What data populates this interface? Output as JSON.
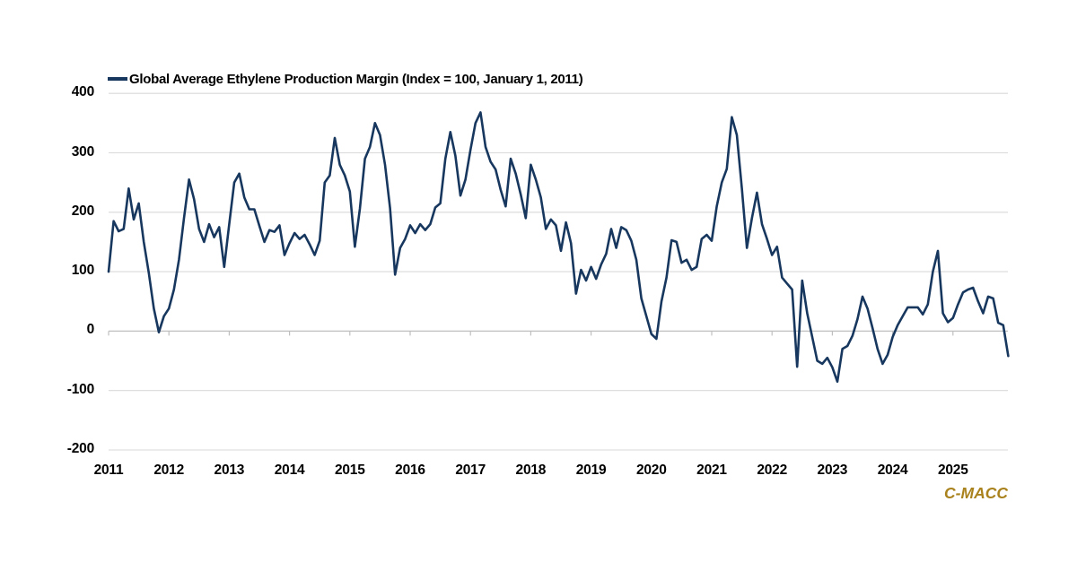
{
  "legend": {
    "label": "Global Average Ethylene Production Margin (Index = 100, January 1, 2011)"
  },
  "watermark": {
    "text": "C-MACC",
    "color": "#A9821D"
  },
  "chart_data": {
    "type": "line",
    "title": "",
    "legend_position": "top-left",
    "grid": "horizontal",
    "gridline_color": "#D9D9D9",
    "axis_line_color": "#BFBFBF",
    "label_color": "#000000",
    "background_color": "#FFFFFF",
    "x_tick_labels": [
      "2011",
      "2012",
      "2013",
      "2014",
      "2015",
      "2016",
      "2017",
      "2018",
      "2019",
      "2020",
      "2021",
      "2022",
      "2023",
      "2024",
      "2025"
    ],
    "y_ticks": [
      400,
      300,
      200,
      100,
      0,
      -100,
      -200
    ],
    "ylim": [
      -200,
      400
    ],
    "x_range_years": [
      2011,
      2026
    ],
    "series": [
      {
        "name": "Global Average Ethylene Production Margin (Index = 100, January 1, 2011)",
        "color": "#17375E",
        "start_year": 2011,
        "points_per_year": 12,
        "values_by_year": [
          {
            "year": "2011",
            "values": [
              100,
              185,
              168,
              172,
              240,
              188,
              215,
              150,
              98,
              38,
              -2,
              25
            ]
          },
          {
            "year": "2012",
            "values": [
              38,
              70,
              120,
              190,
              255,
              222,
              172,
              150,
              180,
              158,
              175,
              108
            ]
          },
          {
            "year": "2013",
            "values": [
              180,
              250,
              265,
              225,
              205,
              205,
              177,
              150,
              170,
              167,
              178,
              128
            ]
          },
          {
            "year": "2014",
            "values": [
              148,
              165,
              155,
              162,
              146,
              128,
              152,
              250,
              262,
              325,
              280,
              262
            ]
          },
          {
            "year": "2015",
            "values": [
              235,
              142,
              206,
              290,
              310,
              350,
              330,
              280,
              207,
              95,
              140,
              155
            ]
          },
          {
            "year": "2016",
            "values": [
              178,
              165,
              180,
              170,
              180,
              208,
              215,
              290,
              335,
              295,
              228,
              255
            ]
          },
          {
            "year": "2017",
            "values": [
              305,
              350,
              368,
              310,
              285,
              272,
              238,
              210,
              290,
              265,
              230,
              190
            ]
          },
          {
            "year": "2018",
            "values": [
              280,
              255,
              225,
              172,
              188,
              178,
              135,
              183,
              148,
              63,
              103,
              85
            ]
          },
          {
            "year": "2019",
            "values": [
              108,
              88,
              112,
              130,
              172,
              140,
              175,
              170,
              152,
              120,
              55,
              25
            ]
          },
          {
            "year": "2020",
            "values": [
              -5,
              -13,
              50,
              90,
              153,
              150,
              115,
              120,
              103,
              108,
              155,
              162
            ]
          },
          {
            "year": "2021",
            "values": [
              152,
              210,
              250,
              273,
              360,
              330,
              240,
              140,
              190,
              233,
              180,
              155
            ]
          },
          {
            "year": "2022",
            "values": [
              128,
              142,
              90,
              80,
              70,
              -60,
              85,
              30,
              -10,
              -50,
              -55,
              -45
            ]
          },
          {
            "year": "2023",
            "values": [
              -61,
              -85,
              -30,
              -25,
              -8,
              20,
              58,
              38,
              5,
              -30,
              -55,
              -40
            ]
          },
          {
            "year": "2024",
            "values": [
              -10,
              10,
              25,
              40,
              40,
              40,
              28,
              45,
              100,
              135,
              30,
              15
            ]
          },
          {
            "year": "2025",
            "values": [
              22,
              45,
              65,
              70,
              73,
              50,
              30,
              58,
              55,
              14,
              10,
              -42
            ]
          }
        ]
      }
    ]
  }
}
